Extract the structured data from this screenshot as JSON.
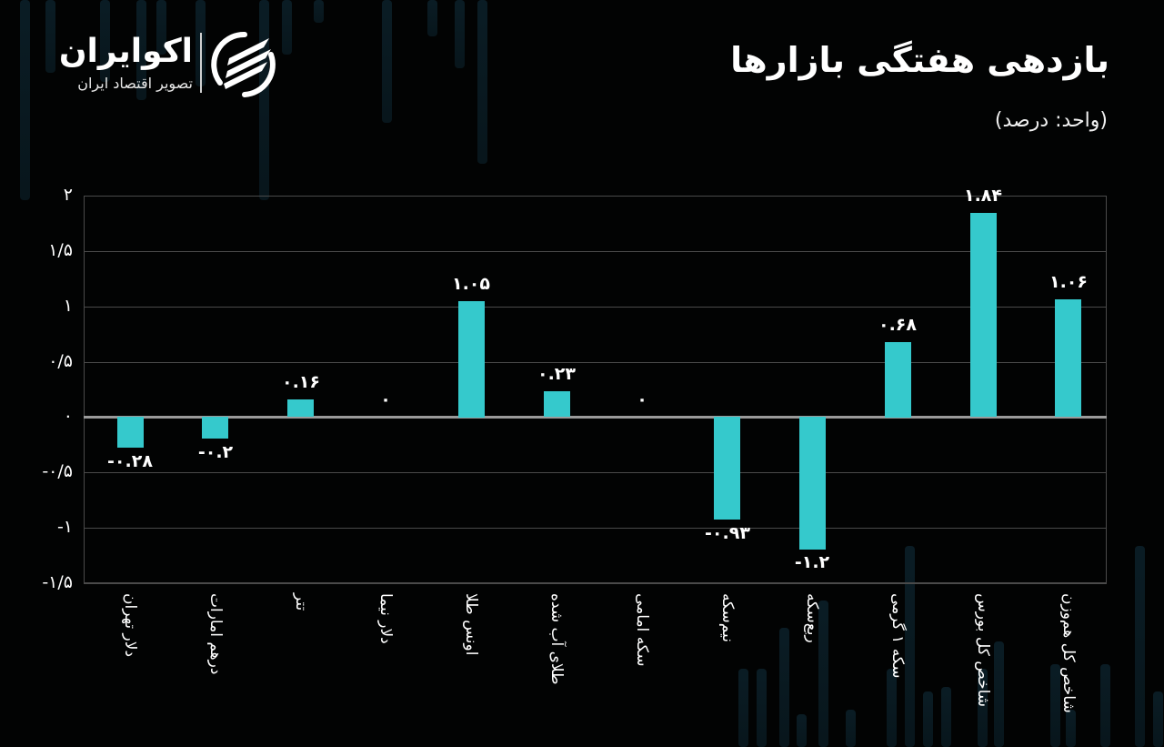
{
  "header": {
    "title": "بازدهی هفتگی بازارها",
    "unit": "(واحد: درصد)"
  },
  "logo": {
    "name": "اکوایران",
    "subtitle": "تصویر اقتصاد ایران",
    "icon": "ecoiran-swirl-logo-icon"
  },
  "colors": {
    "background": "#020303",
    "bar": "#35c9cc",
    "grid": "#4a4a4a",
    "zero_line": "#9a9a9a",
    "text": "#ffffff"
  },
  "y_ticks": [
    "۲",
    "۱/۵",
    "۱",
    "۰/۵",
    "۰",
    "-۰/۵",
    "-۱",
    "-۱/۵"
  ],
  "chart_data": {
    "type": "bar",
    "title": "بازدهی هفتگی بازارها",
    "subtitle": "(واحد: درصد)",
    "xlabel": "",
    "ylabel": "درصد",
    "ylim": [
      -1.5,
      2
    ],
    "y_tick_values": [
      2,
      1.5,
      1,
      0.5,
      0,
      -0.5,
      -1,
      -1.5
    ],
    "grid": true,
    "legend": null,
    "categories": [
      "دلار تهران",
      "درهم امارات",
      "تتر",
      "دلار نیما",
      "اونس طلا",
      "طلای آب شده",
      "سکه امامی",
      "نیم‌سکه",
      "ربع‌سکه",
      "سکه ۱ گرمی",
      "شاخص کل بورس",
      "شاخص کل هم‌وزن"
    ],
    "values": [
      -0.28,
      -0.2,
      0.16,
      0,
      1.05,
      0.23,
      0,
      -0.93,
      -1.2,
      0.68,
      1.84,
      1.06
    ],
    "value_labels": [
      "-۰.۲۸",
      "-۰.۲",
      "۰.۱۶",
      "۰",
      "۱.۰۵",
      "۰.۲۳",
      "۰",
      "-۰.۹۳",
      "-۱.۲",
      "۰.۶۸",
      "۱.۸۴",
      "۱.۰۶"
    ]
  }
}
